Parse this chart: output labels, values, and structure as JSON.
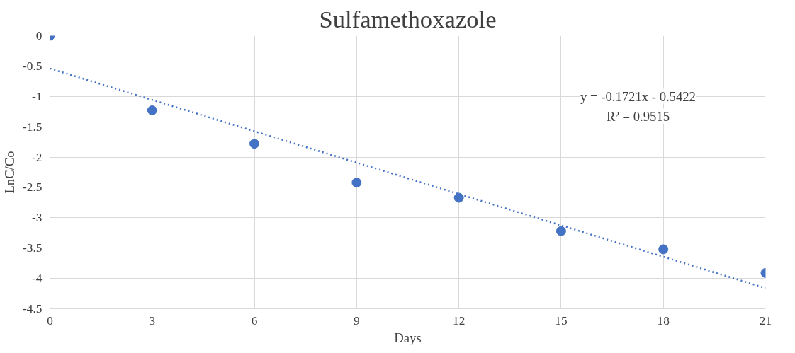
{
  "chart_data": {
    "type": "scatter",
    "title": "Sulfamethoxazole",
    "xlabel": "Days",
    "ylabel": "LnC/Co",
    "x": [
      0,
      3,
      6,
      9,
      12,
      15,
      18,
      21
    ],
    "series": [
      {
        "color": "#4472c4",
        "marker": "circle",
        "values": [
          0,
          -1.23,
          -1.78,
          -2.42,
          -2.67,
          -3.22,
          -3.52,
          -3.91
        ]
      },
      {
        "type": "line",
        "color": "#4472c4",
        "line_style": "dotted",
        "marker": "none",
        "x": [
          0,
          21
        ],
        "values": [
          -0.54,
          -4.16
        ]
      }
    ],
    "annotations": [
      "y = -0.1721x - 0.5422",
      "R² = 0.9515"
    ],
    "xlim": [
      0,
      21
    ],
    "xticks": [
      0,
      3,
      6,
      9,
      12,
      15,
      18,
      21
    ],
    "ylim": [
      -4.5,
      0
    ],
    "yticks": [
      0,
      -0.5,
      -1,
      -1.5,
      -2,
      -2.5,
      -3,
      -3.5,
      -4,
      -4.5
    ],
    "grid": true
  }
}
